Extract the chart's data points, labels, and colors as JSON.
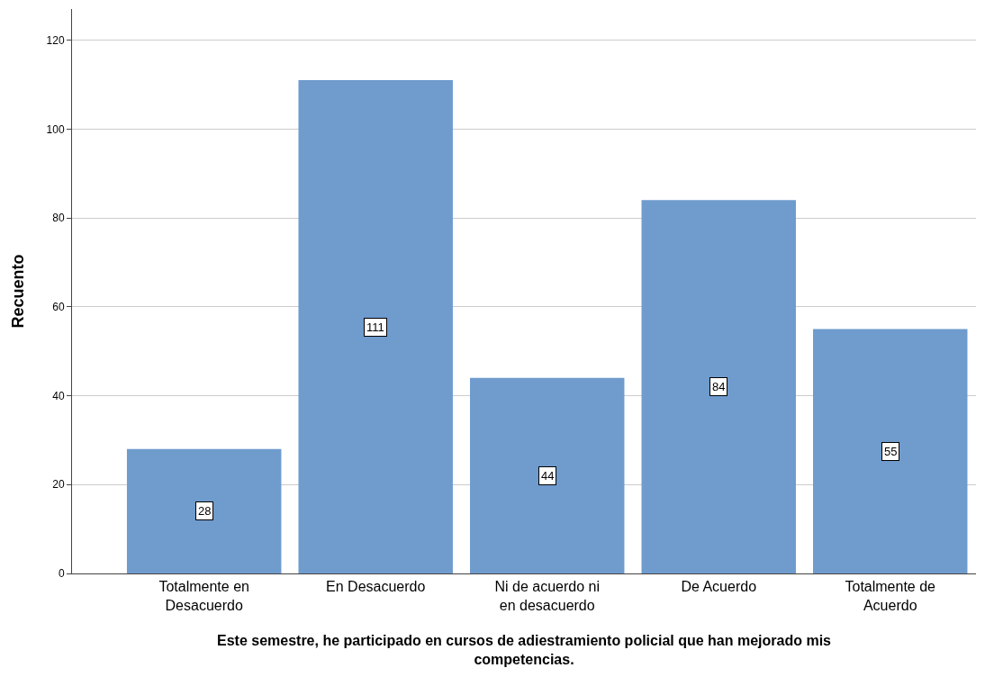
{
  "chart_data": {
    "type": "bar",
    "xlabel": "Este semestre, he participado en cursos de adiestramiento policial que han mejorado mis competencias.",
    "ylabel": "Recuento",
    "categories": [
      "Totalmente en Desacuerdo",
      "En Desacuerdo",
      "Ni de acuerdo ni en desacuerdo",
      "De Acuerdo",
      "Totalmente de Acuerdo"
    ],
    "values": [
      28,
      111,
      44,
      84,
      55
    ],
    "color": "#6f9bcd",
    "data_labels": true,
    "ylim": [
      0,
      127
    ],
    "yticks": [
      0,
      20,
      40,
      60,
      80,
      100,
      120
    ],
    "grid": "y"
  }
}
